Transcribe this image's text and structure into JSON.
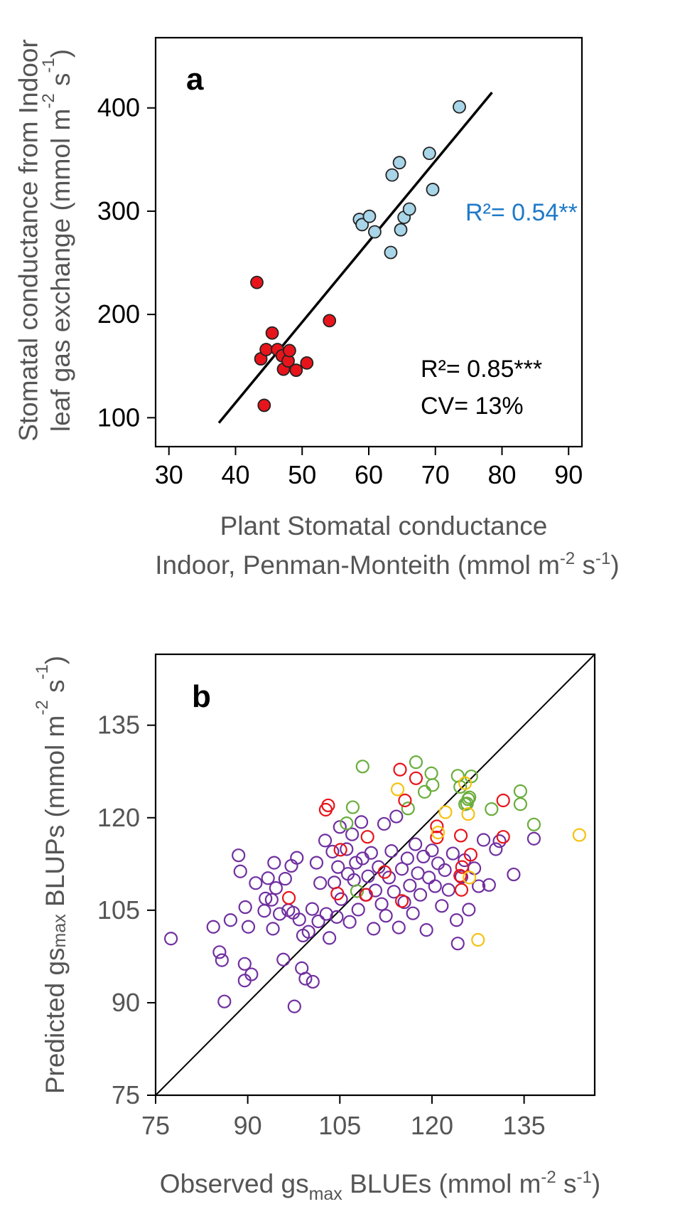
{
  "panel_a": {
    "letter": "a",
    "ylabel_line1": "Stomatal conductance from Indoor",
    "ylabel_line2": "leaf gas exchange (mmol m",
    "ylabel_line2_sup": "-2",
    "ylabel_line2_mid": " s",
    "ylabel_line2_sup2": "-1",
    "ylabel_line2_end": ")",
    "xlabel_line1": "Plant Stomatal conductance",
    "xlabel_line2": "Indoor, Penman-Monteith (mmol m",
    "xlabel_line2_sup": "-2",
    "xlabel_line2_mid": " s",
    "xlabel_line2_sup2": "-1",
    "xlabel_line2_end": ")",
    "annot_r2": "R²= 0.85***",
    "annot_cv": "CV= 13%",
    "annot_blue": "R²= 0.54**",
    "colors": {
      "red": "#e8141b",
      "blue": "#a8d5e8",
      "blue_text": "#1f7ac8",
      "line": "#000000"
    }
  },
  "panel_b": {
    "letter": "b",
    "ylabel_pre": "Predicted gs",
    "ylabel_sub": "max",
    "ylabel_mid": " BLUPs (mmol m",
    "ylabel_sup": "-2",
    "ylabel_mid2": " s",
    "ylabel_sup2": "-1",
    "ylabel_end": ")",
    "xlabel_pre": "Observed gs",
    "xlabel_sub": "max",
    "xlabel_mid": " BLUEs (mmol m",
    "xlabel_sup": "-2",
    "xlabel_mid2": " s",
    "xlabel_sup2": "-1",
    "xlabel_end": ")",
    "colors": {
      "purple": "#7030a0",
      "red": "#e8141b",
      "green": "#6aad3d",
      "yellow": "#f5c211"
    }
  },
  "chart_data": [
    {
      "type": "scatter",
      "panel": "a",
      "xlabel": "Plant Stomatal conductance Indoor, Penman-Monteith (mmol m-2 s-1)",
      "ylabel": "Stomatal conductance from Indoor leaf gas exchange (mmol m-2 s-1)",
      "xlim": [
        28,
        92
      ],
      "ylim": [
        72,
        468
      ],
      "xticks": [
        30,
        40,
        50,
        60,
        70,
        80,
        90
      ],
      "yticks": [
        100,
        200,
        300,
        400
      ],
      "fit_line": {
        "x": [
          37.5,
          78.5
        ],
        "y": [
          95,
          415
        ]
      },
      "series": [
        {
          "name": "red",
          "points": [
            [
              43.2,
              231
            ],
            [
              43.8,
              157
            ],
            [
              44.3,
              112
            ],
            [
              44.6,
              166
            ],
            [
              45.5,
              182
            ],
            [
              46.3,
              166
            ],
            [
              47.0,
              160
            ],
            [
              47.2,
              147
            ],
            [
              47.9,
              155
            ],
            [
              48.1,
              165
            ],
            [
              49.1,
              146
            ],
            [
              50.7,
              153
            ],
            [
              54.1,
              194
            ]
          ]
        },
        {
          "name": "blue",
          "points": [
            [
              58.6,
              292
            ],
            [
              59.0,
              287
            ],
            [
              60.1,
              295
            ],
            [
              60.9,
              280
            ],
            [
              63.3,
              260
            ],
            [
              63.5,
              335
            ],
            [
              64.6,
              347
            ],
            [
              64.8,
              282
            ],
            [
              65.3,
              294
            ],
            [
              66.1,
              302
            ],
            [
              69.1,
              356
            ],
            [
              69.6,
              321
            ],
            [
              73.6,
              401
            ]
          ]
        }
      ]
    },
    {
      "type": "scatter",
      "panel": "b",
      "xlabel": "Observed gsmax BLUEs (mmol m-2 s-1)",
      "ylabel": "Predicted gsmax BLUPs (mmol m-2 s-1)",
      "xlim": [
        75,
        146.5
      ],
      "ylim": [
        75,
        146.5
      ],
      "xticks": [
        75,
        90,
        105,
        120,
        135
      ],
      "yticks": [
        75,
        90,
        105,
        120,
        135
      ],
      "identity_line": {
        "x": [
          75,
          146.5
        ],
        "y": [
          75,
          146.5
        ]
      },
      "series": [
        {
          "name": "green",
          "points": [
            [
              108.7,
              128.3
            ],
            [
              116.1,
              121.5
            ],
            [
              117.4,
              129.0
            ],
            [
              118.8,
              124.2
            ],
            [
              119.9,
              127.2
            ],
            [
              120.1,
              125.3
            ],
            [
              124.2,
              126.8
            ],
            [
              124.6,
              125.0
            ],
            [
              125.4,
              122.2
            ],
            [
              125.9,
              123.0
            ],
            [
              126.4,
              126.7
            ],
            [
              126.1,
              123.3
            ],
            [
              125.7,
              122.3
            ],
            [
              129.7,
              121.4
            ],
            [
              134.4,
              124.3
            ],
            [
              134.4,
              122.2
            ],
            [
              136.6,
              118.9
            ],
            [
              107.8,
              108.1
            ],
            [
              107.1,
              121.7
            ],
            [
              106.1,
              119.1
            ]
          ]
        },
        {
          "name": "red",
          "points": [
            [
              102.7,
              121.3
            ],
            [
              103.1,
              122.0
            ],
            [
              114.8,
              127.8
            ],
            [
              115.6,
              122.8
            ],
            [
              117.4,
              126.4
            ],
            [
              120.8,
              118.6
            ],
            [
              120.8,
              116.8
            ],
            [
              124.6,
              110.6
            ],
            [
              124.8,
              108.3
            ],
            [
              124.7,
              117.1
            ],
            [
              124.9,
              112.0
            ],
            [
              126.3,
              114.0
            ],
            [
              131.6,
              116.9
            ],
            [
              131.6,
              122.8
            ],
            [
              96.7,
              107.0
            ],
            [
              104.6,
              107.7
            ],
            [
              105.1,
              114.8
            ],
            [
              109.3,
              107.5
            ],
            [
              109.5,
              116.9
            ],
            [
              112.3,
              111.2
            ],
            [
              115.1,
              106.5
            ]
          ]
        },
        {
          "name": "yellow",
          "points": [
            [
              114.4,
              124.6
            ],
            [
              122.2,
              120.9
            ],
            [
              125.4,
              125.6
            ],
            [
              125.9,
              120.6
            ],
            [
              126.1,
              110.3
            ],
            [
              127.5,
              100.2
            ],
            [
              144.0,
              117.2
            ],
            [
              121.0,
              117.6
            ]
          ]
        },
        {
          "name": "purple",
          "points": [
            [
              77.5,
              100.4
            ],
            [
              84.4,
              102.3
            ],
            [
              85.4,
              98.2
            ],
            [
              85.8,
              96.9
            ],
            [
              86.2,
              90.2
            ],
            [
              87.2,
              103.4
            ],
            [
              88.5,
              113.9
            ],
            [
              88.8,
              111.3
            ],
            [
              89.6,
              105.5
            ],
            [
              89.5,
              96.3
            ],
            [
              89.5,
              93.6
            ],
            [
              90.1,
              102.3
            ],
            [
              90.6,
              94.6
            ],
            [
              91.3,
              109.4
            ],
            [
              92.7,
              104.9
            ],
            [
              92.9,
              106.9
            ],
            [
              93.3,
              110.2
            ],
            [
              93.9,
              106.7
            ],
            [
              94.1,
              102.0
            ],
            [
              94.3,
              112.7
            ],
            [
              94.6,
              108.6
            ],
            [
              95.2,
              104.4
            ],
            [
              95.8,
              97.0
            ],
            [
              96.1,
              110.1
            ],
            [
              96.6,
              105.0
            ],
            [
              97.1,
              112.2
            ],
            [
              97.4,
              104.6
            ],
            [
              97.6,
              89.4
            ],
            [
              98.0,
              113.5
            ],
            [
              98.4,
              103.5
            ],
            [
              98.8,
              95.6
            ],
            [
              99.0,
              100.9
            ],
            [
              99.4,
              93.9
            ],
            [
              99.9,
              101.5
            ],
            [
              100.5,
              105.2
            ],
            [
              100.6,
              93.4
            ],
            [
              101.2,
              112.7
            ],
            [
              101.5,
              103.2
            ],
            [
              101.8,
              109.4
            ],
            [
              102.6,
              116.3
            ],
            [
              102.8,
              104.4
            ],
            [
              103.3,
              100.5
            ],
            [
              103.8,
              114.5
            ],
            [
              104.1,
              109.5
            ],
            [
              104.5,
              103.9
            ],
            [
              104.7,
              112.0
            ],
            [
              105.0,
              118.5
            ],
            [
              105.2,
              106.8
            ],
            [
              106.1,
              114.9
            ],
            [
              106.3,
              110.9
            ],
            [
              106.6,
              103.1
            ],
            [
              107.0,
              117.3
            ],
            [
              107.3,
              109.9
            ],
            [
              107.6,
              112.7
            ],
            [
              108.0,
              105.1
            ],
            [
              108.5,
              119.3
            ],
            [
              108.7,
              113.4
            ],
            [
              109.2,
              107.5
            ],
            [
              109.6,
              110.5
            ],
            [
              110.1,
              114.3
            ],
            [
              110.5,
              102.0
            ],
            [
              110.8,
              108.2
            ],
            [
              111.3,
              112.0
            ],
            [
              111.8,
              106.0
            ],
            [
              112.2,
              119.0
            ],
            [
              112.5,
              104.1
            ],
            [
              113.0,
              110.3
            ],
            [
              113.4,
              114.6
            ],
            [
              113.8,
              108.0
            ],
            [
              114.2,
              120.2
            ],
            [
              114.6,
              102.2
            ],
            [
              115.1,
              111.7
            ],
            [
              115.5,
              106.3
            ],
            [
              116.0,
              113.4
            ],
            [
              116.4,
              109.0
            ],
            [
              116.9,
              104.5
            ],
            [
              117.3,
              115.7
            ],
            [
              117.7,
              111.0
            ],
            [
              118.1,
              107.5
            ],
            [
              118.6,
              113.7
            ],
            [
              119.1,
              101.8
            ],
            [
              119.5,
              110.3
            ],
            [
              120.0,
              114.7
            ],
            [
              120.5,
              108.9
            ],
            [
              121.0,
              112.6
            ],
            [
              121.6,
              105.7
            ],
            [
              122.1,
              111.5
            ],
            [
              122.7,
              108.3
            ],
            [
              123.4,
              114.2
            ],
            [
              124.0,
              103.4
            ],
            [
              124.2,
              99.6
            ],
            [
              124.8,
              110.4
            ],
            [
              125.3,
              113.1
            ],
            [
              126.0,
              105.1
            ],
            [
              126.9,
              111.8
            ],
            [
              127.6,
              108.9
            ],
            [
              128.4,
              116.4
            ],
            [
              129.3,
              109.1
            ],
            [
              130.4,
              114.9
            ],
            [
              131.0,
              116.2
            ],
            [
              133.3,
              110.8
            ],
            [
              136.6,
              116.6
            ]
          ]
        }
      ]
    }
  ]
}
